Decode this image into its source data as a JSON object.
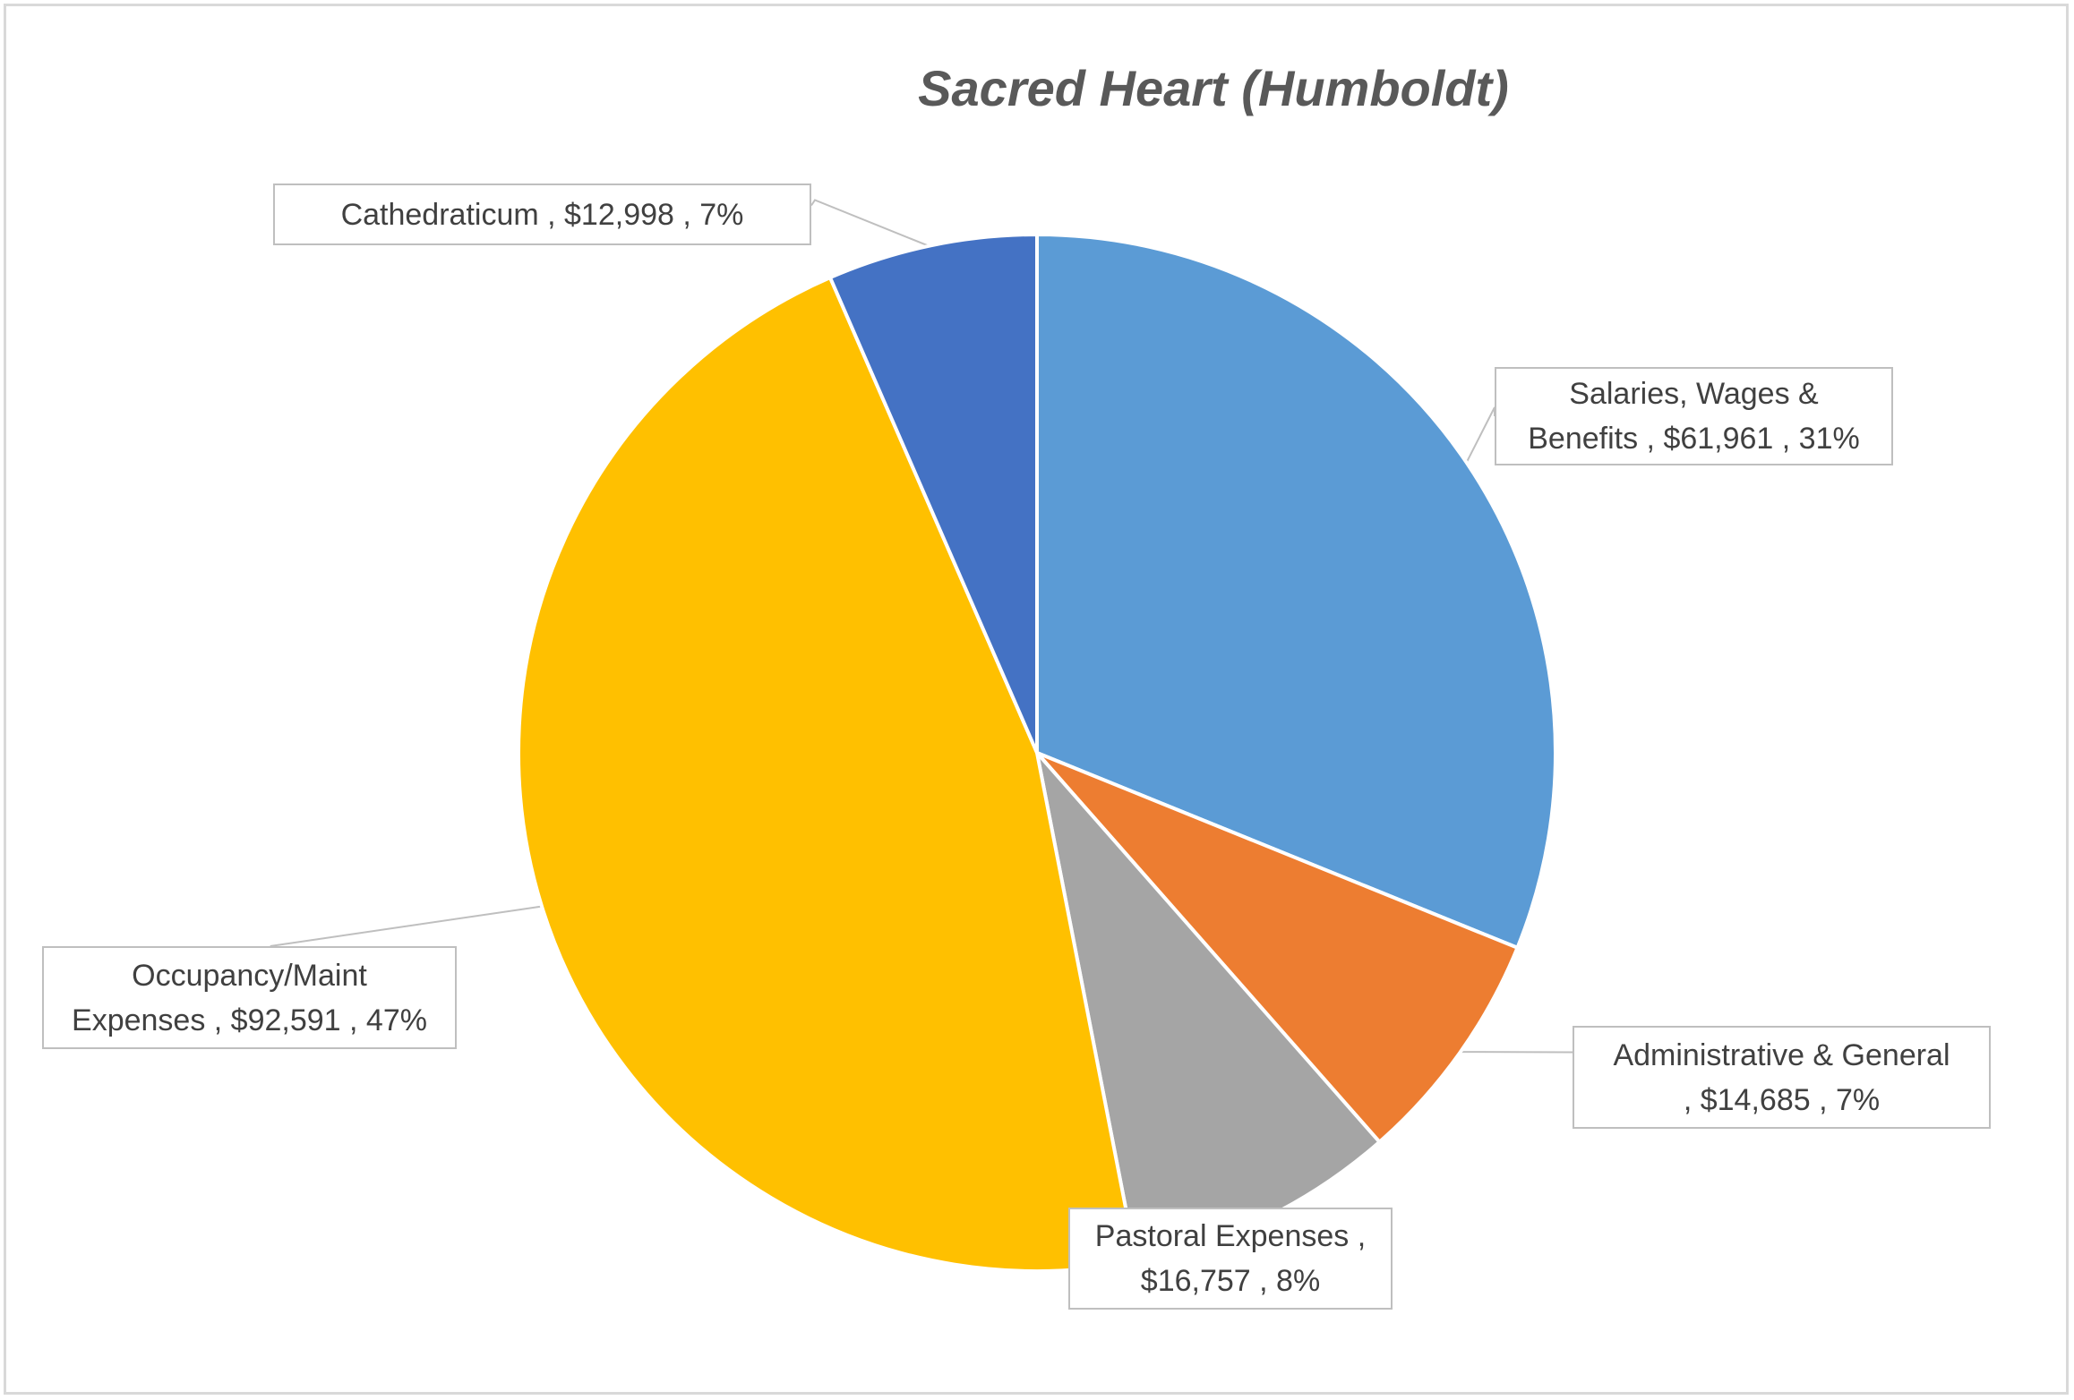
{
  "chart_data": {
    "type": "pie",
    "title": "Sacred Heart (Humboldt)",
    "start_angle_deg": 0,
    "direction": "clockwise",
    "slices": [
      {
        "name": "Salaries, Wages & Benefits",
        "value": 61961,
        "percent": 31,
        "color": "#5b9bd5",
        "label_line1": "Salaries, Wages &",
        "label_line2": "Benefits ,  $61,961 , 31%"
      },
      {
        "name": "Administrative & General",
        "value": 14685,
        "percent": 7,
        "color": "#ed7d31",
        "label_line1": "Administrative & General",
        "label_line2": ",  $14,685 , 7%"
      },
      {
        "name": "Pastoral Expenses",
        "value": 16757,
        "percent": 8,
        "color": "#a5a5a5",
        "label_line1": "Pastoral Expenses ,",
        "label_line2": "$16,757 , 8%"
      },
      {
        "name": "Occupancy/Maint Expenses",
        "value": 92591,
        "percent": 47,
        "color": "#ffc000",
        "label_line1": "Occupancy/Maint",
        "label_line2": "Expenses ,  $92,591 , 47%"
      },
      {
        "name": "Cathedraticum",
        "value": 12998,
        "percent": 7,
        "color": "#4472c4",
        "label_line1": "Cathedraticum ,  $12,998 , 7%",
        "label_line2": ""
      }
    ],
    "legend": "none",
    "slice_border_color": "#ffffff",
    "label_border_color": "#bfbfbf",
    "leader_line_color": "#bfbfbf"
  }
}
